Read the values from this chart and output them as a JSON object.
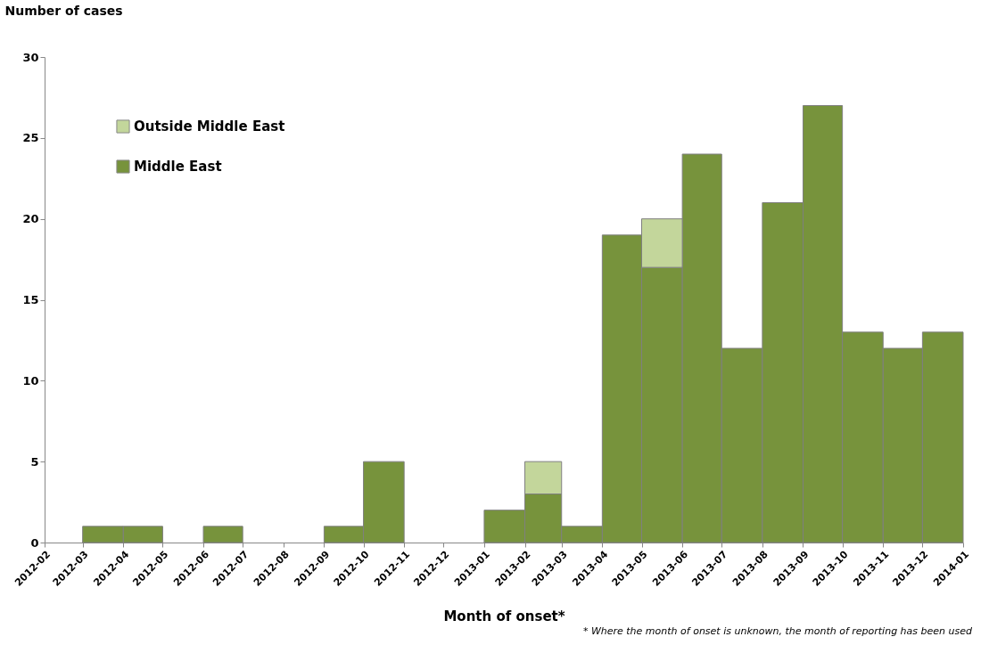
{
  "chart_data": {
    "type": "bar",
    "stacked": true,
    "ylabel": "Number of cases",
    "xlabel": "Month of onset*",
    "x": [
      "2012-03-16",
      "2012-04-16",
      "2012-05-16",
      "2012-06-16",
      "2012-07-16",
      "2012-08-16",
      "2012-09-16",
      "2012-10-16",
      "2012-11-16",
      "2012-12-16",
      "2013-01-16",
      "2013-02-15",
      "2013-03-16",
      "2013-04-16",
      "2013-05-16",
      "2013-06-16",
      "2013-07-16",
      "2013-08-16",
      "2013-09-16",
      "2013-10-16",
      "2013-11-16",
      "2013-12-16"
    ],
    "series": [
      {
        "name": "Middle East",
        "color": "#77933c",
        "values": [
          1,
          1,
          null,
          1,
          null,
          null,
          1,
          5,
          null,
          null,
          2,
          3,
          1,
          19,
          17,
          24,
          12,
          21,
          27,
          13,
          12,
          13
        ]
      },
      {
        "name": "Outside Middle East",
        "color": "#c3d69b",
        "values": [
          null,
          null,
          null,
          null,
          null,
          null,
          null,
          null,
          null,
          null,
          null,
          2,
          null,
          null,
          3,
          null,
          null,
          null,
          null,
          null,
          null,
          null
        ]
      }
    ],
    "xlim": [
      "2012-02",
      "2014-01"
    ],
    "xticks": [
      "2012-02",
      "2012-03",
      "2012-04",
      "2012-05",
      "2012-06",
      "2012-07",
      "2012-08",
      "2012-09",
      "2012-10",
      "2012-11",
      "2012-12",
      "2013-01",
      "2013-02",
      "2013-03",
      "2013-04",
      "2013-05",
      "2013-06",
      "2013-07",
      "2013-08",
      "2013-09",
      "2013-10",
      "2013-11",
      "2013-12",
      "2014-01"
    ],
    "ylim": [
      0,
      30
    ],
    "yticks": [
      0,
      5,
      10,
      15,
      20,
      25,
      30
    ],
    "grid": false,
    "legend": "top left",
    "annotations": [
      "* Where the month of onset is unknown, the month of reporting has been used"
    ]
  }
}
